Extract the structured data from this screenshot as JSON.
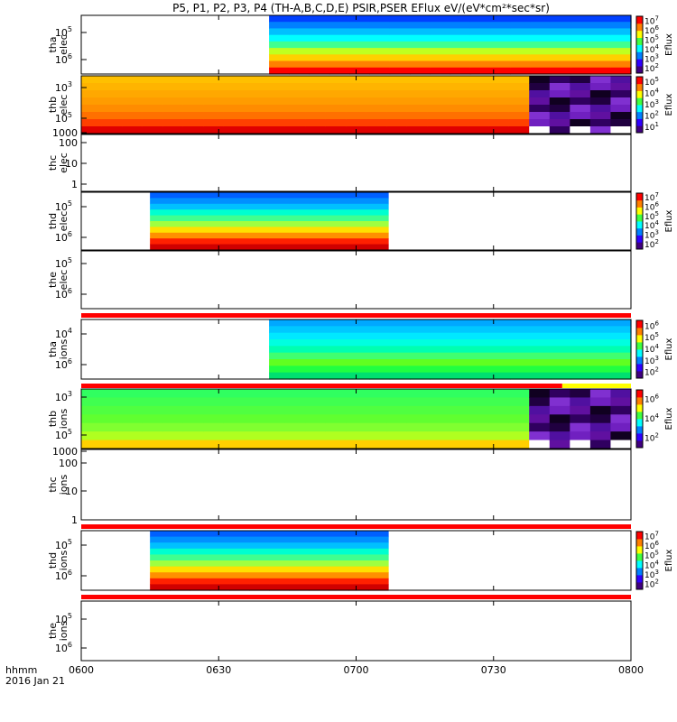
{
  "title": "P5, P1, P2, P3, P4 (TH-A,B,C,D,E) PSIR,PSER EFlux eV/(eV*cm²*sec*sr)",
  "time_axis": {
    "ticks": [
      "0600",
      "0630",
      "0700",
      "0730",
      "0800"
    ],
    "label": "hhmm",
    "date": "2016 Jan 21",
    "range_min": [
      0,
      120
    ]
  },
  "colors": {
    "red_bar": "#ff0000",
    "yellow_bar": "#ffff00",
    "axis": "#000000"
  },
  "chart_data": [
    {
      "type": "heatmap",
      "name": "tha-elec",
      "ylabel": [
        "tha",
        "elec"
      ],
      "yticks": [
        {
          "base": "10",
          "exp": "5"
        },
        {
          "base": "10",
          "exp": "6"
        }
      ],
      "coverage_min": [
        41,
        120
      ],
      "profile": [
        "#ff0000",
        "#ff8000",
        "#ffd000",
        "#c0ff20",
        "#40ff90",
        "#00ffff",
        "#00c0ff",
        "#0080ff",
        "#0040ff"
      ],
      "colorbar": {
        "label": "Eflux",
        "ticks": [
          {
            "base": "10",
            "exp": "2"
          },
          {
            "base": "10",
            "exp": "3"
          },
          {
            "base": "10",
            "exp": "4"
          },
          {
            "base": "10",
            "exp": "5"
          },
          {
            "base": "10",
            "exp": "6"
          },
          {
            "base": "10",
            "exp": "7"
          }
        ]
      }
    },
    {
      "type": "heatmap",
      "name": "thb-elec",
      "ylabel": [
        "thb",
        "elec"
      ],
      "yticks": [
        {
          "base": "10",
          "exp": "3"
        },
        {
          "base": "10",
          "exp": "5"
        }
      ],
      "coverage_min": [
        0,
        120
      ],
      "profile": [
        "#e00000",
        "#ff4000",
        "#ff7000",
        "#ff8c00",
        "#ff9c00",
        "#ffa800",
        "#ffb400",
        "#ffc000"
      ],
      "dark_from_min": 97,
      "colorbar": {
        "label": "Eflux",
        "ticks": [
          {
            "base": "10",
            "exp": "1"
          },
          {
            "base": "10",
            "exp": "2"
          },
          {
            "base": "10",
            "exp": "3"
          },
          {
            "base": "10",
            "exp": "4"
          },
          {
            "base": "10",
            "exp": "5"
          }
        ]
      }
    },
    {
      "type": "heatmap",
      "name": "thc-elec",
      "ylabel": [
        "thc",
        "elec"
      ],
      "yticks": [
        "1",
        "10",
        "100",
        "1000"
      ],
      "coverage_min": null
    },
    {
      "type": "heatmap",
      "name": "thd-elec",
      "ylabel": [
        "thd",
        "elec"
      ],
      "yticks": [
        {
          "base": "10",
          "exp": "5"
        },
        {
          "base": "10",
          "exp": "6"
        }
      ],
      "coverage_min": [
        15,
        67
      ],
      "profile": [
        "#d00000",
        "#ff2000",
        "#ff9000",
        "#ffe000",
        "#a0ff40",
        "#40ff90",
        "#00ffd0",
        "#00c0ff",
        "#0090ff",
        "#0060ff"
      ],
      "colorbar": {
        "label": "Eflux",
        "ticks": [
          {
            "base": "10",
            "exp": "2"
          },
          {
            "base": "10",
            "exp": "3"
          },
          {
            "base": "10",
            "exp": "4"
          },
          {
            "base": "10",
            "exp": "5"
          },
          {
            "base": "10",
            "exp": "6"
          },
          {
            "base": "10",
            "exp": "7"
          }
        ]
      }
    },
    {
      "type": "heatmap",
      "name": "the-elec",
      "ylabel": [
        "the",
        "elec"
      ],
      "yticks": [
        {
          "base": "10",
          "exp": "5"
        },
        {
          "base": "10",
          "exp": "6"
        }
      ],
      "coverage_min": null
    },
    {
      "type": "heatmap",
      "name": "tha-ions",
      "ylabel": [
        "tha",
        "ions"
      ],
      "yticks": [
        {
          "base": "10",
          "exp": "4"
        },
        {
          "base": "10",
          "exp": "6"
        }
      ],
      "coverage_min": [
        41,
        120
      ],
      "profile": [
        "#00e070",
        "#20ff40",
        "#60ff20",
        "#40ff70",
        "#00ffb0",
        "#00ffe0",
        "#00e8ff",
        "#00c8ff",
        "#00a8ff"
      ],
      "colorbar": {
        "label": "Eflux",
        "ticks": [
          {
            "base": "10",
            "exp": "2"
          },
          {
            "base": "10",
            "exp": "3"
          },
          {
            "base": "10",
            "exp": "4"
          },
          {
            "base": "10",
            "exp": "5"
          },
          {
            "base": "10",
            "exp": "6"
          }
        ]
      }
    },
    {
      "type": "heatmap",
      "name": "thb-ions",
      "ylabel": [
        "thb",
        "ions"
      ],
      "yticks": [
        {
          "base": "10",
          "exp": "3"
        },
        {
          "base": "10",
          "exp": "5"
        }
      ],
      "coverage_min": [
        0,
        120
      ],
      "profile": [
        "#ffd000",
        "#b0ff20",
        "#80ff30",
        "#60ff30",
        "#50ff40",
        "#40ff50",
        "#30ff60"
      ],
      "dark_from_min": 97,
      "colorbar": {
        "label": "Eflux",
        "ticks": [
          {
            "base": "10",
            "exp": "2"
          },
          {
            "base": "10",
            "exp": "4"
          },
          {
            "base": "10",
            "exp": "6"
          }
        ]
      }
    },
    {
      "type": "heatmap",
      "name": "thc-ions",
      "ylabel": [
        "thc",
        "ions"
      ],
      "yticks": [
        "1",
        "10",
        "100",
        "1000"
      ],
      "coverage_min": null
    },
    {
      "type": "heatmap",
      "name": "thd-ions",
      "ylabel": [
        "thd",
        "ions"
      ],
      "yticks": [
        {
          "base": "10",
          "exp": "5"
        },
        {
          "base": "10",
          "exp": "6"
        }
      ],
      "coverage_min": [
        15,
        67
      ],
      "profile": [
        "#d00000",
        "#ff2000",
        "#ff9000",
        "#ffe000",
        "#a0ff40",
        "#40ff90",
        "#00ffd0",
        "#00c0ff",
        "#0090ff",
        "#0060ff"
      ],
      "colorbar": {
        "label": "Eflux",
        "ticks": [
          {
            "base": "10",
            "exp": "2"
          },
          {
            "base": "10",
            "exp": "3"
          },
          {
            "base": "10",
            "exp": "4"
          },
          {
            "base": "10",
            "exp": "5"
          },
          {
            "base": "10",
            "exp": "6"
          },
          {
            "base": "10",
            "exp": "7"
          }
        ]
      }
    },
    {
      "type": "heatmap",
      "name": "the-ions",
      "ylabel": [
        "the",
        "ions"
      ],
      "yticks": [
        {
          "base": "10",
          "exp": "5"
        },
        {
          "base": "10",
          "exp": "6"
        }
      ],
      "coverage_min": null
    }
  ]
}
